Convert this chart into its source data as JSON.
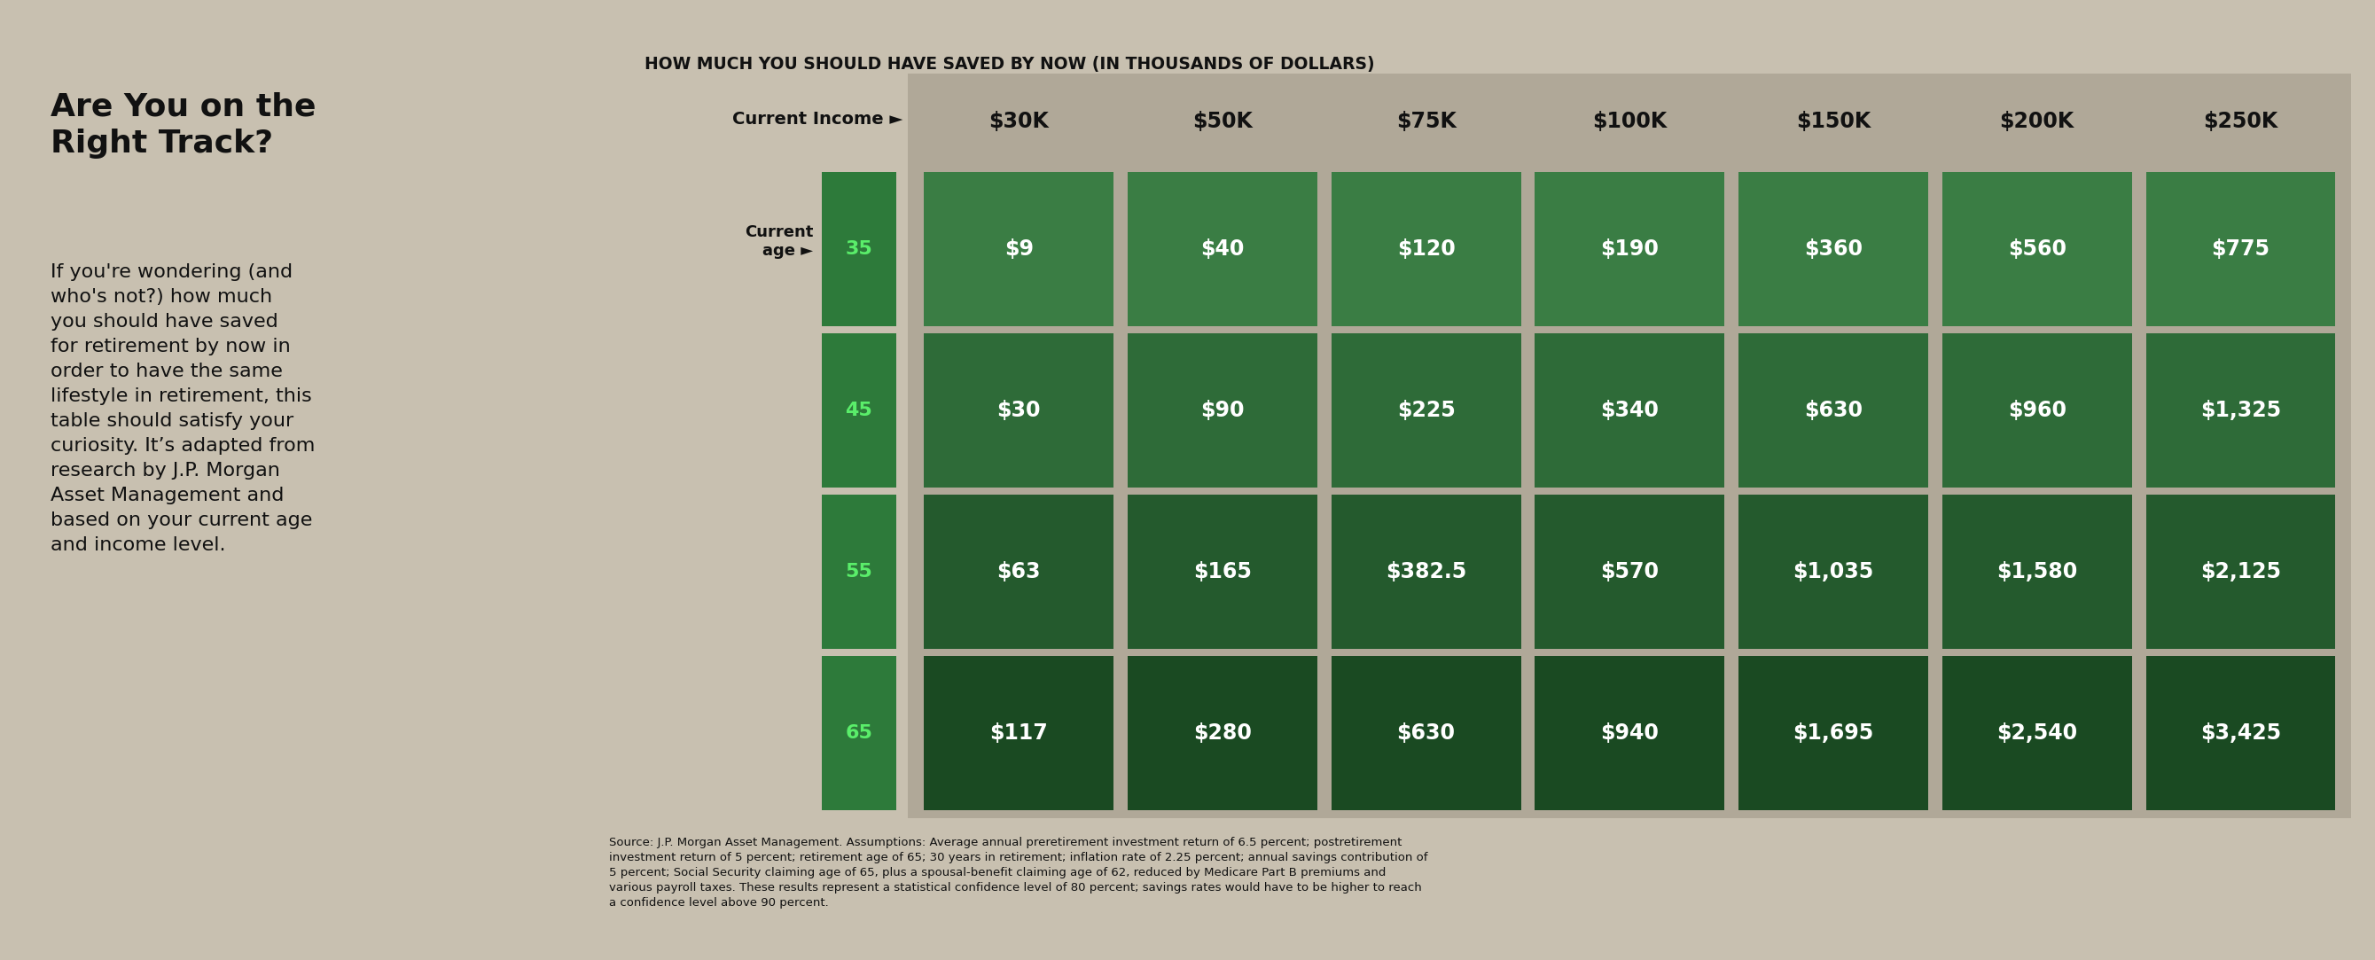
{
  "title": "HOW MUCH YOU SHOULD HAVE SAVED BY NOW (IN THOUSANDS OF DOLLARS)",
  "left_title": "Are You on the\nRight Track?",
  "left_body": "If you're wondering (and\nwho's not?) how much\nyou should have saved\nfor retirement by now in\norder to have the same\nlifestyle in retirement, this\ntable should satisfy your\ncuriosity. It’s adapted from\nresearch by J.P. Morgan\nAsset Management and\nbased on your current age\nand income level.",
  "source_bold": "Source:",
  "source_bold2": "Assumptions:",
  "source_text": "Source: J.P. Morgan Asset Management. Assumptions: Average annual preretirement investment return of 6.5 percent; postretirement\ninvestment return of 5 percent; retirement age of 65; 30 years in retirement; inflation rate of 2.25 percent; annual savings contribution of\n5 percent; Social Security claiming age of 65, plus a spousal-benefit claiming age of 62, reduced by Medicare Part B premiums and\nvarious payroll taxes. These results represent a statistical confidence level of 80 percent; savings rates would have to be higher to reach\na confidence level above 90 percent.",
  "income_labels": [
    "$30K",
    "$50K",
    "$75K",
    "$100K",
    "$150K",
    "$200K",
    "$250K"
  ],
  "age_labels": [
    "35",
    "45",
    "55",
    "65"
  ],
  "table_data": [
    [
      "$9",
      "$40",
      "$120",
      "$190",
      "$360",
      "$560",
      "$775"
    ],
    [
      "$30",
      "$90",
      "$225",
      "$340",
      "$630",
      "$960",
      "$1,325"
    ],
    [
      "$63",
      "$165",
      "$382.5",
      "$570",
      "$1,035",
      "$1,580",
      "$2,125"
    ],
    [
      "$117",
      "$280",
      "$630",
      "$940",
      "$1,695",
      "$2,540",
      "$3,425"
    ]
  ],
  "bg_color": "#c8c0b0",
  "cell_greens": [
    "#3a7d44",
    "#2e6b38",
    "#245a2d",
    "#1a4a22"
  ],
  "age_green": "#2d7a3a",
  "age_text_green": "#5aee6a",
  "white": "#ffffff",
  "dark_text": "#111111"
}
